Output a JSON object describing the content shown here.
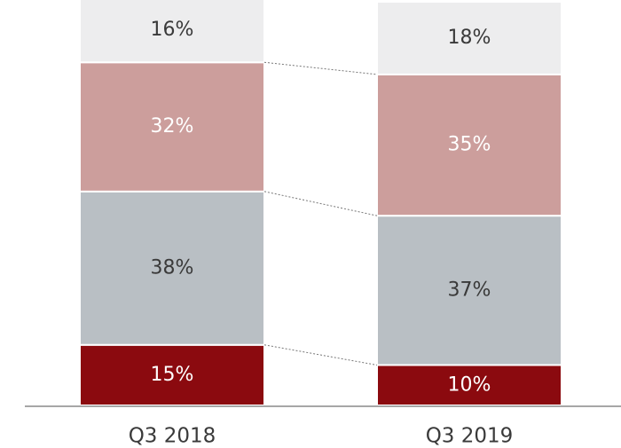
{
  "chart_data": {
    "type": "stacked_bar",
    "categories": [
      "Q3 2018",
      "Q3 2019"
    ],
    "series": [
      {
        "color": "#8b0a0f",
        "label_color": "#ffffff",
        "values": [
          15,
          10
        ],
        "value_labels": [
          "15%",
          "10%"
        ]
      },
      {
        "color": "#b9bfc4",
        "label_color": "#3a3a3a",
        "values": [
          38,
          37
        ],
        "value_labels": [
          "38%",
          "37%"
        ]
      },
      {
        "color": "#cc9e9c",
        "label_color": "#ffffff",
        "values": [
          32,
          35
        ],
        "value_labels": [
          "32%",
          "35%"
        ]
      },
      {
        "color": "#ededee",
        "label_color": "#3a3a3a",
        "values": [
          16,
          18
        ],
        "value_labels": [
          "16%",
          "18%"
        ]
      }
    ],
    "ylim": [
      0,
      100
    ]
  }
}
